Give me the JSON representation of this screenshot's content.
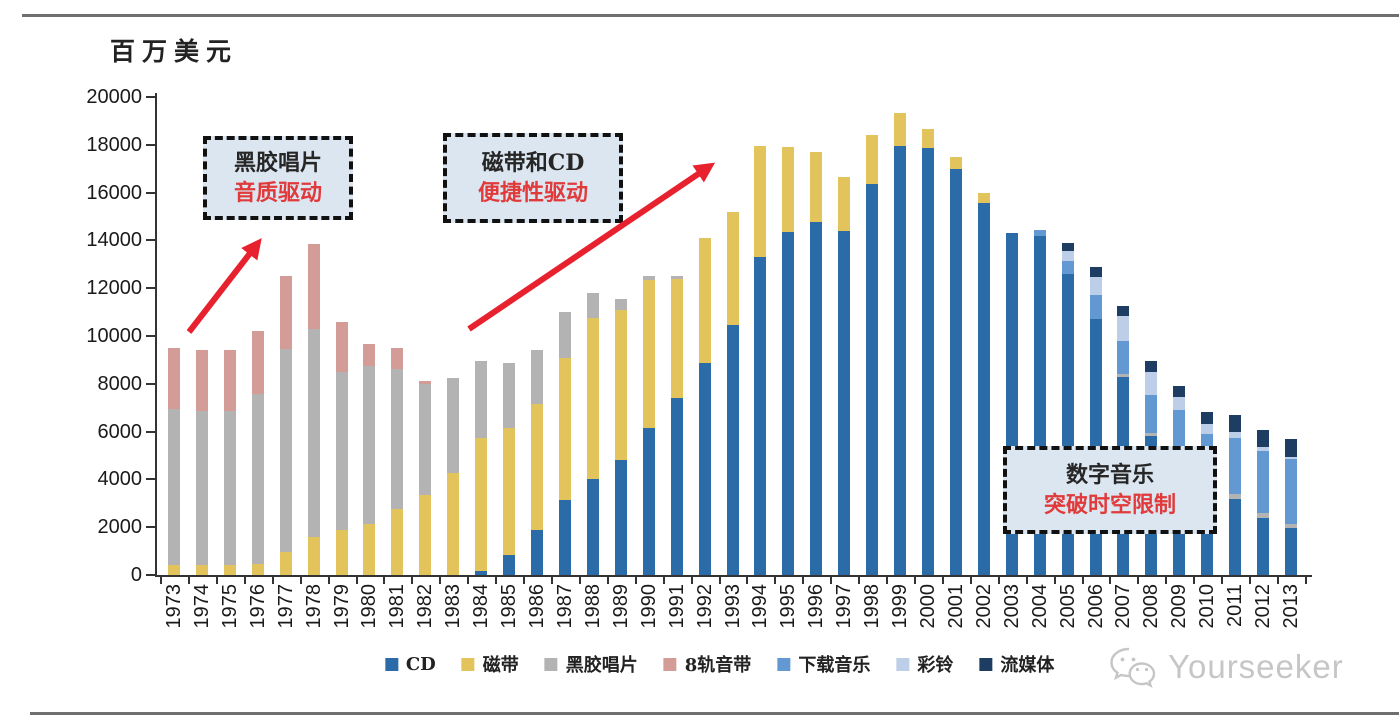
{
  "page": {
    "unit_label": "百万美元",
    "watermark_text": "Yourseeker"
  },
  "annotations": {
    "vinyl_box": {
      "line1": "黑胶唱片",
      "line2": "音质驱动"
    },
    "tape_cd_box": {
      "line1": "磁带和CD",
      "line2": "便捷性驱动"
    },
    "digital_box": {
      "line1": "数字音乐",
      "line2": "突破时空限制"
    }
  },
  "colors": {
    "accent_red": "#E8212E",
    "annotation_box_fill": "#DCE6F1",
    "annotation_box_border": "#111111",
    "watermark_gray": "#C6C6C6"
  },
  "chart_data": {
    "type": "bar",
    "stacked": true,
    "title": "",
    "xlabel": "",
    "ylabel": "百万美元",
    "ylim": [
      0,
      20000
    ],
    "ytick_step": 2000,
    "grid": false,
    "legend_position": "bottom",
    "categories": [
      "1973",
      "1974",
      "1975",
      "1976",
      "1977",
      "1978",
      "1979",
      "1980",
      "1981",
      "1982",
      "1983",
      "1984",
      "1985",
      "1986",
      "1987",
      "1988",
      "1989",
      "1990",
      "1991",
      "1992",
      "1993",
      "1994",
      "1995",
      "1996",
      "1997",
      "1998",
      "1999",
      "2000",
      "2001",
      "2002",
      "2003",
      "2004",
      "2005",
      "2006",
      "2007",
      "2008",
      "2009",
      "2010",
      "2011",
      "2012",
      "2013"
    ],
    "series": [
      {
        "name": "CD",
        "color": "#2A6BA8",
        "values": [
          0,
          0,
          0,
          0,
          0,
          0,
          0,
          0,
          0,
          0,
          0,
          150,
          850,
          1900,
          3150,
          4000,
          4830,
          6170,
          7390,
          8860,
          10460,
          13310,
          14360,
          14780,
          14400,
          16380,
          17950,
          17850,
          17000,
          15580,
          14300,
          14200,
          12600,
          10700,
          8300,
          5800,
          4700,
          3850,
          3200,
          2400,
          1950
        ]
      },
      {
        "name": "磁带",
        "color": "#E3C35C",
        "values": [
          400,
          420,
          420,
          470,
          950,
          1600,
          1900,
          2150,
          2750,
          3350,
          4280,
          5600,
          5300,
          5250,
          5950,
          6750,
          6250,
          6180,
          5000,
          5240,
          4740,
          4640,
          3540,
          2920,
          2250,
          2020,
          1400,
          800,
          500,
          420,
          0,
          0,
          0,
          0,
          0,
          0,
          0,
          0,
          0,
          0,
          0
        ]
      },
      {
        "name": "黑胶唱片",
        "color": "#B3B3B3",
        "values": [
          6550,
          6430,
          6430,
          7090,
          8500,
          8700,
          6600,
          6600,
          5850,
          4650,
          3950,
          3200,
          2700,
          2250,
          1900,
          1050,
          470,
          150,
          110,
          0,
          0,
          0,
          0,
          0,
          0,
          0,
          0,
          0,
          0,
          0,
          0,
          0,
          0,
          0,
          100,
          150,
          100,
          100,
          200,
          200,
          200
        ]
      },
      {
        "name": "8轨音带",
        "color": "#D39C97",
        "values": [
          2550,
          2550,
          2550,
          2640,
          3050,
          3550,
          2100,
          900,
          900,
          100,
          0,
          0,
          0,
          0,
          0,
          0,
          0,
          0,
          0,
          0,
          0,
          0,
          0,
          0,
          0,
          0,
          0,
          0,
          0,
          0,
          0,
          0,
          0,
          0,
          0,
          0,
          0,
          0,
          0,
          0,
          0
        ]
      },
      {
        "name": "下载音乐",
        "color": "#6399D2",
        "values": [
          0,
          0,
          0,
          0,
          0,
          0,
          0,
          0,
          0,
          0,
          0,
          0,
          0,
          0,
          0,
          0,
          0,
          0,
          0,
          0,
          0,
          0,
          0,
          0,
          0,
          0,
          0,
          0,
          0,
          0,
          0,
          250,
          550,
          1000,
          1400,
          1600,
          2100,
          1950,
          2350,
          2600,
          2700
        ]
      },
      {
        "name": "彩铃",
        "color": "#BDCFE8",
        "values": [
          0,
          0,
          0,
          0,
          0,
          0,
          0,
          0,
          0,
          0,
          0,
          0,
          0,
          0,
          0,
          0,
          0,
          0,
          0,
          0,
          0,
          0,
          0,
          0,
          0,
          0,
          0,
          0,
          0,
          0,
          0,
          0,
          420,
          750,
          1050,
          950,
          550,
          400,
          250,
          150,
          100
        ]
      },
      {
        "name": "流媒体",
        "color": "#1E3D63",
        "values": [
          0,
          0,
          0,
          0,
          0,
          0,
          0,
          0,
          0,
          0,
          0,
          0,
          0,
          0,
          0,
          0,
          0,
          0,
          0,
          0,
          0,
          0,
          0,
          0,
          0,
          0,
          0,
          0,
          0,
          0,
          0,
          0,
          330,
          450,
          400,
          450,
          450,
          500,
          700,
          700,
          720
        ]
      }
    ]
  }
}
